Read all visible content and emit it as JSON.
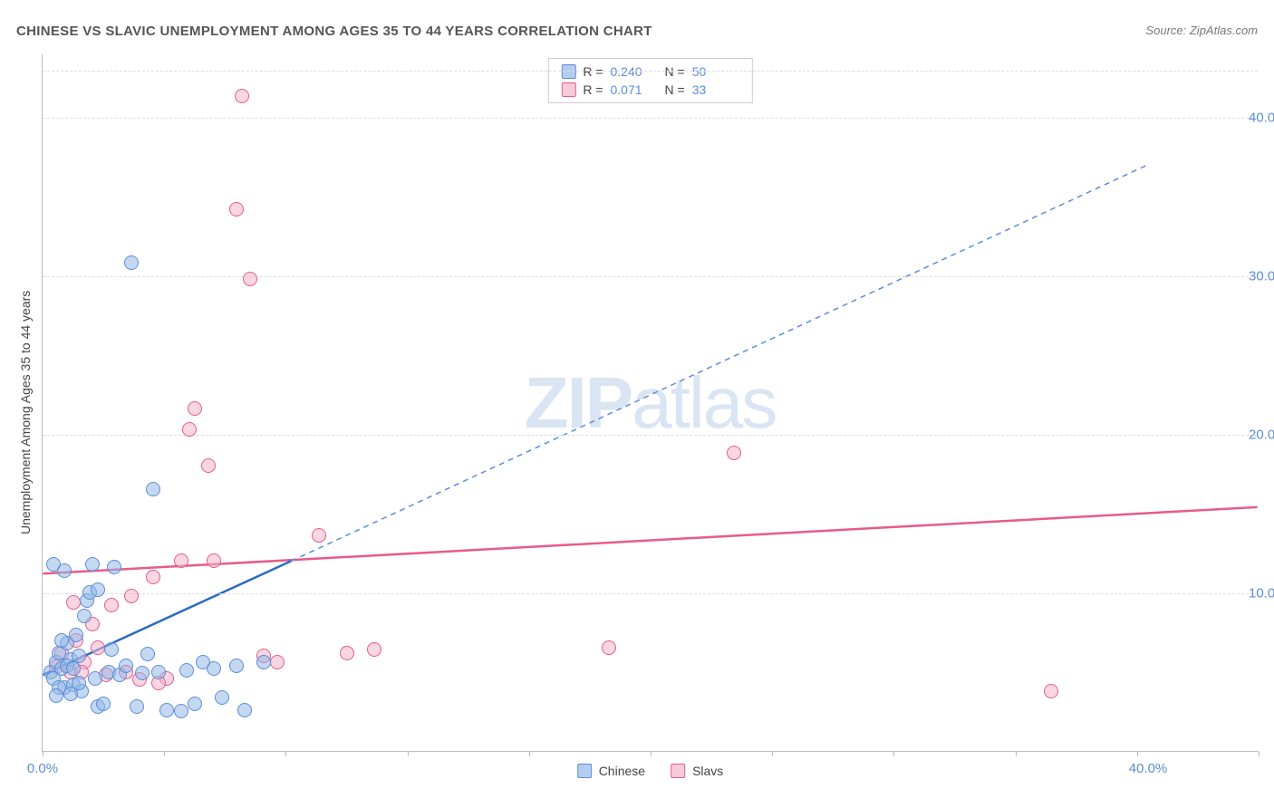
{
  "title": "CHINESE VS SLAVIC UNEMPLOYMENT AMONG AGES 35 TO 44 YEARS CORRELATION CHART",
  "source": "Source: ZipAtlas.com",
  "y_axis_label": "Unemployment Among Ages 35 to 44 years",
  "watermark_bold": "ZIP",
  "watermark_rest": "atlas",
  "chart": {
    "type": "scatter",
    "background_color": "#ffffff",
    "grid_color": "#dddddd",
    "axis_color": "#bbbbbb",
    "tick_label_color": "#5b8dd8",
    "xlim": [
      0,
      44
    ],
    "ylim": [
      0,
      44
    ],
    "y_ticks": [
      10,
      20,
      30,
      40
    ],
    "y_tick_labels": [
      "10.0%",
      "20.0%",
      "30.0%",
      "40.0%"
    ],
    "x_ticks": [
      0,
      4.4,
      8.8,
      13.2,
      17.6,
      22,
      26.4,
      30.8,
      35.2,
      39.6,
      44
    ],
    "x_tick_label_left": "0.0%",
    "x_tick_label_right": "40.0%",
    "point_radius": 8,
    "series": {
      "chinese": {
        "label": "Chinese",
        "fill_color": "rgba(147,184,232,0.55)",
        "stroke_color": "#5b8dd8",
        "R": "0.240",
        "N": "50",
        "trend_solid": {
          "x1": 0,
          "y1": 4.8,
          "x2": 9.0,
          "y2": 12.0,
          "color": "#2a6bc4",
          "width": 2.5
        },
        "trend_dashed": {
          "x1": 9.0,
          "y1": 12.0,
          "x2": 40.0,
          "y2": 37.0,
          "color": "#5b8dd8",
          "width": 1.5,
          "dash": "6,5"
        },
        "points": [
          [
            0.3,
            5.0
          ],
          [
            0.5,
            5.6
          ],
          [
            0.4,
            4.6
          ],
          [
            0.6,
            6.2
          ],
          [
            0.7,
            5.2
          ],
          [
            0.8,
            4.0
          ],
          [
            0.9,
            6.8
          ],
          [
            1.0,
            5.8
          ],
          [
            1.1,
            4.2
          ],
          [
            1.2,
            7.3
          ],
          [
            1.3,
            6.0
          ],
          [
            1.4,
            3.8
          ],
          [
            1.5,
            8.5
          ],
          [
            1.6,
            9.5
          ],
          [
            1.7,
            10.0
          ],
          [
            1.8,
            11.8
          ],
          [
            1.9,
            4.6
          ],
          [
            2.0,
            2.8
          ],
          [
            2.2,
            3.0
          ],
          [
            2.4,
            5.0
          ],
          [
            2.5,
            6.4
          ],
          [
            2.6,
            11.6
          ],
          [
            2.8,
            4.8
          ],
          [
            3.0,
            5.4
          ],
          [
            3.2,
            30.8
          ],
          [
            3.4,
            2.8
          ],
          [
            3.6,
            4.9
          ],
          [
            3.8,
            6.1
          ],
          [
            4.0,
            16.5
          ],
          [
            4.2,
            5.0
          ],
          [
            4.5,
            2.6
          ],
          [
            5.0,
            2.5
          ],
          [
            5.2,
            5.1
          ],
          [
            5.5,
            3.0
          ],
          [
            5.8,
            5.6
          ],
          [
            6.2,
            5.2
          ],
          [
            6.5,
            3.4
          ],
          [
            7.0,
            5.4
          ],
          [
            7.3,
            2.6
          ],
          [
            8.0,
            5.6
          ],
          [
            1.0,
            3.6
          ],
          [
            1.3,
            4.3
          ],
          [
            0.9,
            5.4
          ],
          [
            0.6,
            4.0
          ],
          [
            0.5,
            3.5
          ],
          [
            2.0,
            10.2
          ],
          [
            0.4,
            11.8
          ],
          [
            1.1,
            5.2
          ],
          [
            0.7,
            7.0
          ],
          [
            0.8,
            11.4
          ]
        ]
      },
      "slavs": {
        "label": "Slavs",
        "fill_color": "rgba(244,180,200,0.55)",
        "stroke_color": "#e85a8a",
        "R": "0.071",
        "N": "33",
        "trend_solid": {
          "x1": 0,
          "y1": 11.2,
          "x2": 44.0,
          "y2": 15.4,
          "color": "#e85a8a",
          "width": 2.5
        },
        "points": [
          [
            0.5,
            5.3
          ],
          [
            0.7,
            6.2
          ],
          [
            1.0,
            5.0
          ],
          [
            1.2,
            7.0
          ],
          [
            1.5,
            5.6
          ],
          [
            1.8,
            8.0
          ],
          [
            2.0,
            6.5
          ],
          [
            2.3,
            4.8
          ],
          [
            2.5,
            9.2
          ],
          [
            3.0,
            5.0
          ],
          [
            3.2,
            9.8
          ],
          [
            3.5,
            4.5
          ],
          [
            4.0,
            11.0
          ],
          [
            4.5,
            4.6
          ],
          [
            5.0,
            12.0
          ],
          [
            5.3,
            20.3
          ],
          [
            5.5,
            21.6
          ],
          [
            6.0,
            18.0
          ],
          [
            6.2,
            12.0
          ],
          [
            7.0,
            34.2
          ],
          [
            7.2,
            41.3
          ],
          [
            7.5,
            29.8
          ],
          [
            8.0,
            6.0
          ],
          [
            8.5,
            5.6
          ],
          [
            10.0,
            13.6
          ],
          [
            11.0,
            6.2
          ],
          [
            12.0,
            6.4
          ],
          [
            20.5,
            6.5
          ],
          [
            25.0,
            18.8
          ],
          [
            36.5,
            3.8
          ],
          [
            1.1,
            9.4
          ],
          [
            1.4,
            5.0
          ],
          [
            4.2,
            4.3
          ]
        ]
      }
    }
  },
  "legend_top_labels": {
    "R": "R =",
    "N": "N ="
  },
  "legend_bottom": [
    "Chinese",
    "Slavs"
  ]
}
